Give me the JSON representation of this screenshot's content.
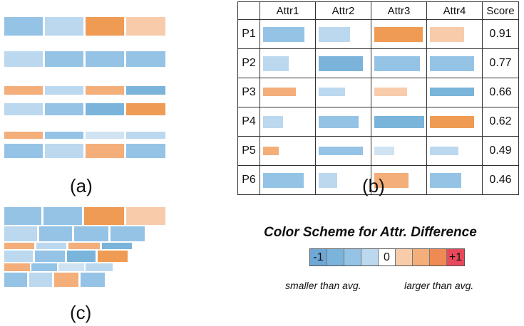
{
  "colors": {
    "blue_dark": "#7ab4db",
    "blue_mid": "#95c3e6",
    "blue_light": "#bbd8ef",
    "blue_pale": "#cfe3f3",
    "orange_dark": "#ef9b54",
    "orange_mid": "#f3ae7a",
    "orange_light": "#f8ccab",
    "red": "#e8495a"
  },
  "captions": {
    "a": "(a)",
    "b": "(b)",
    "c": "(c)"
  },
  "table": {
    "headers": [
      "",
      "Attr1",
      "Attr2",
      "Attr3",
      "Attr4",
      "Score"
    ],
    "rows": [
      {
        "label": "P1",
        "score": "0.91"
      },
      {
        "label": "P2",
        "score": "0.77"
      },
      {
        "label": "P3",
        "score": "0.66"
      },
      {
        "label": "P4",
        "score": "0.62"
      },
      {
        "label": "P5",
        "score": "0.49"
      },
      {
        "label": "P6",
        "score": "0.46"
      }
    ]
  },
  "legend": {
    "title": "Color Scheme for Attr. Difference",
    "min_label": "-1",
    "zero_label": "0",
    "max_label": "+1",
    "smaller_note": "smaller than avg.",
    "larger_note": "larger than avg."
  }
}
